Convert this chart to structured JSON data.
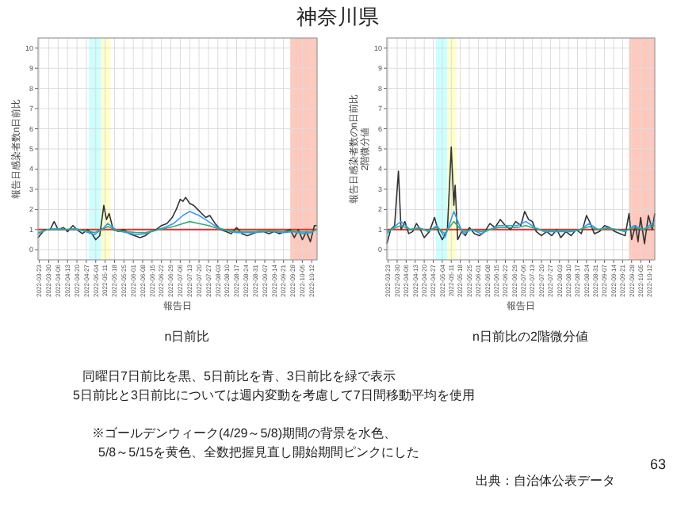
{
  "chart_data": [
    {
      "type": "other",
      "title": "神奈川県",
      "annotations": [
        "同曜日7日前比を黒、5日前比を青、3日前比を緑で表示",
        "5日前比と3日前比については週内変動を考慮して7日間移動平均を使用",
        "※ゴールデンウィーク(4/29～5/8)期間の背景を水色、",
        "5/8～5/15を黄色、全数把握見直し開始期間ピンクにした",
        "出典：自治体公表データ",
        "63"
      ]
    },
    {
      "type": "line",
      "title": "n日前比",
      "xlabel": "報告日",
      "ylabel": "報告日感染者数n日前比",
      "xlim": [
        "2022-03-22",
        "2022-10-16"
      ],
      "ylim": [
        -0.5,
        10.5
      ],
      "yticks": [
        0,
        1,
        2,
        3,
        4,
        5,
        6,
        7,
        8,
        9,
        10
      ],
      "xticks": [
        "2022-03-23",
        "2022-03-30",
        "2022-04-06",
        "2022-04-13",
        "2022-04-20",
        "2022-04-27",
        "2022-05-04",
        "2022-05-11",
        "2022-05-18",
        "2022-05-25",
        "2022-06-01",
        "2022-06-08",
        "2022-06-15",
        "2022-06-22",
        "2022-06-29",
        "2022-07-06",
        "2022-07-13",
        "2022-07-20",
        "2022-07-27",
        "2022-08-03",
        "2022-08-10",
        "2022-08-17",
        "2022-08-24",
        "2022-08-31",
        "2022-09-07",
        "2022-09-14",
        "2022-09-21",
        "2022-09-28",
        "2022-10-05",
        "2022-10-12"
      ],
      "grid": true,
      "bands": [
        {
          "axis": "x",
          "from": "2022-04-29",
          "to": "2022-05-08",
          "color": "#ccffff"
        },
        {
          "axis": "x",
          "from": "2022-05-08",
          "to": "2022-05-15",
          "color": "#ffffcc"
        },
        {
          "axis": "x",
          "from": "2022-09-26",
          "to": "2022-10-16",
          "color": "#ffc8bc"
        }
      ],
      "ref_lines": [
        {
          "axis": "y",
          "value": 1,
          "color": "#e03030"
        }
      ],
      "series": [
        {
          "color": "#333333",
          "x": [
            "2022-03-22",
            "2022-03-27",
            "2022-03-31",
            "2022-04-03",
            "2022-04-06",
            "2022-04-10",
            "2022-04-13",
            "2022-04-17",
            "2022-04-20",
            "2022-04-24",
            "2022-04-28",
            "2022-05-01",
            "2022-05-04",
            "2022-05-07",
            "2022-05-10",
            "2022-05-12",
            "2022-05-14",
            "2022-05-17",
            "2022-05-21",
            "2022-05-25",
            "2022-05-29",
            "2022-06-02",
            "2022-06-06",
            "2022-06-10",
            "2022-06-14",
            "2022-06-18",
            "2022-06-22",
            "2022-06-26",
            "2022-06-30",
            "2022-07-03",
            "2022-07-06",
            "2022-07-08",
            "2022-07-10",
            "2022-07-13",
            "2022-07-16",
            "2022-07-19",
            "2022-07-22",
            "2022-07-25",
            "2022-07-28",
            "2022-08-01",
            "2022-08-05",
            "2022-08-09",
            "2022-08-13",
            "2022-08-17",
            "2022-08-21",
            "2022-08-25",
            "2022-08-29",
            "2022-09-02",
            "2022-09-06",
            "2022-09-10",
            "2022-09-14",
            "2022-09-18",
            "2022-09-22",
            "2022-09-26",
            "2022-09-29",
            "2022-10-02",
            "2022-10-05",
            "2022-10-08",
            "2022-10-11",
            "2022-10-14",
            "2022-10-16"
          ],
          "values": [
            0.6,
            1.0,
            1.0,
            1.4,
            1.0,
            1.1,
            0.9,
            1.2,
            1.0,
            0.8,
            1.0,
            0.8,
            0.5,
            0.7,
            2.2,
            1.5,
            1.8,
            1.0,
            0.9,
            1.0,
            0.8,
            0.7,
            0.6,
            0.7,
            0.9,
            1.0,
            1.2,
            1.3,
            1.6,
            2.0,
            2.5,
            2.4,
            2.6,
            2.3,
            2.2,
            2.0,
            1.8,
            1.6,
            1.7,
            1.3,
            1.0,
            0.9,
            0.8,
            1.1,
            0.8,
            0.7,
            0.8,
            0.9,
            0.9,
            0.8,
            0.9,
            0.8,
            0.9,
            1.0,
            0.6,
            1.0,
            0.5,
            0.9,
            0.4,
            1.2,
            1.2
          ]
        },
        {
          "color": "#3399ff",
          "x": [
            "2022-03-22",
            "2022-03-29",
            "2022-04-05",
            "2022-04-12",
            "2022-04-19",
            "2022-04-26",
            "2022-05-03",
            "2022-05-10",
            "2022-05-13",
            "2022-05-20",
            "2022-05-27",
            "2022-06-03",
            "2022-06-10",
            "2022-06-17",
            "2022-06-24",
            "2022-07-01",
            "2022-07-08",
            "2022-07-13",
            "2022-07-20",
            "2022-07-27",
            "2022-08-03",
            "2022-08-10",
            "2022-08-17",
            "2022-08-24",
            "2022-08-31",
            "2022-09-07",
            "2022-09-14",
            "2022-09-21",
            "2022-09-28",
            "2022-10-05",
            "2022-10-12",
            "2022-10-16"
          ],
          "values": [
            0.8,
            1.0,
            1.05,
            1.0,
            1.05,
            0.9,
            0.75,
            1.1,
            1.3,
            0.95,
            0.85,
            0.75,
            0.8,
            0.95,
            1.1,
            1.3,
            1.7,
            1.9,
            1.7,
            1.4,
            1.1,
            0.95,
            0.85,
            0.85,
            0.85,
            0.9,
            0.9,
            0.85,
            0.9,
            0.8,
            0.85,
            1.05
          ]
        },
        {
          "color": "#33aa77",
          "x": [
            "2022-03-22",
            "2022-03-29",
            "2022-04-05",
            "2022-04-12",
            "2022-04-19",
            "2022-04-26",
            "2022-05-03",
            "2022-05-10",
            "2022-05-13",
            "2022-05-20",
            "2022-05-27",
            "2022-06-03",
            "2022-06-10",
            "2022-06-17",
            "2022-06-24",
            "2022-07-01",
            "2022-07-08",
            "2022-07-13",
            "2022-07-20",
            "2022-07-27",
            "2022-08-03",
            "2022-08-10",
            "2022-08-17",
            "2022-08-24",
            "2022-08-31",
            "2022-09-07",
            "2022-09-14",
            "2022-09-21",
            "2022-09-28",
            "2022-10-05",
            "2022-10-12",
            "2022-10-16"
          ],
          "values": [
            0.85,
            1.0,
            1.0,
            1.0,
            1.0,
            0.95,
            0.85,
            1.05,
            1.15,
            0.95,
            0.9,
            0.85,
            0.85,
            0.95,
            1.05,
            1.15,
            1.3,
            1.4,
            1.3,
            1.2,
            1.05,
            0.95,
            0.9,
            0.9,
            0.9,
            0.92,
            0.92,
            0.9,
            0.92,
            0.88,
            0.9,
            1.0
          ]
        }
      ]
    },
    {
      "type": "line",
      "title": "n日前比の2階微分値",
      "xlabel": "報告日",
      "ylabel": "報告日感染者数のn日前比\n2階微分値",
      "xlim": [
        "2022-03-22",
        "2022-10-16"
      ],
      "ylim": [
        -0.5,
        10.5
      ],
      "yticks": [
        0,
        1,
        2,
        3,
        4,
        5,
        6,
        7,
        8,
        9,
        10
      ],
      "xticks": [
        "2022-03-23",
        "2022-03-30",
        "2022-04-06",
        "2022-04-13",
        "2022-04-20",
        "2022-04-27",
        "2022-05-04",
        "2022-05-11",
        "2022-05-18",
        "2022-05-25",
        "2022-06-01",
        "2022-06-08",
        "2022-06-15",
        "2022-06-22",
        "2022-06-29",
        "2022-07-06",
        "2022-07-13",
        "2022-07-20",
        "2022-07-27",
        "2022-08-03",
        "2022-08-10",
        "2022-08-17",
        "2022-08-24",
        "2022-08-31",
        "2022-09-07",
        "2022-09-14",
        "2022-09-21",
        "2022-09-28",
        "2022-10-05",
        "2022-10-12"
      ],
      "grid": true,
      "bands": [
        {
          "axis": "x",
          "from": "2022-04-29",
          "to": "2022-05-08",
          "color": "#ccffff"
        },
        {
          "axis": "x",
          "from": "2022-05-08",
          "to": "2022-05-15",
          "color": "#ffffcc"
        },
        {
          "axis": "x",
          "from": "2022-09-26",
          "to": "2022-10-16",
          "color": "#ffc8bc"
        }
      ],
      "ref_lines": [
        {
          "axis": "y",
          "value": 1,
          "color": "#e03030"
        }
      ],
      "series": [
        {
          "color": "#333333",
          "x": [
            "2022-03-22",
            "2022-03-25",
            "2022-03-28",
            "2022-03-31",
            "2022-04-02",
            "2022-04-05",
            "2022-04-08",
            "2022-04-11",
            "2022-04-14",
            "2022-04-17",
            "2022-04-20",
            "2022-04-24",
            "2022-04-28",
            "2022-05-01",
            "2022-05-04",
            "2022-05-08",
            "2022-05-11",
            "2022-05-13",
            "2022-05-14",
            "2022-05-16",
            "2022-05-19",
            "2022-05-22",
            "2022-05-25",
            "2022-05-29",
            "2022-06-02",
            "2022-06-06",
            "2022-06-10",
            "2022-06-14",
            "2022-06-18",
            "2022-06-22",
            "2022-06-26",
            "2022-06-30",
            "2022-07-04",
            "2022-07-07",
            "2022-07-10",
            "2022-07-13",
            "2022-07-16",
            "2022-07-20",
            "2022-07-24",
            "2022-07-28",
            "2022-08-01",
            "2022-08-04",
            "2022-08-08",
            "2022-08-12",
            "2022-08-16",
            "2022-08-20",
            "2022-08-24",
            "2022-08-27",
            "2022-08-30",
            "2022-09-03",
            "2022-09-07",
            "2022-09-11",
            "2022-09-15",
            "2022-09-19",
            "2022-09-23",
            "2022-09-26",
            "2022-09-28",
            "2022-10-01",
            "2022-10-03",
            "2022-10-05",
            "2022-10-08",
            "2022-10-11",
            "2022-10-14",
            "2022-10-16"
          ],
          "values": [
            0.3,
            1.0,
            1.2,
            3.9,
            1.0,
            1.4,
            0.8,
            0.9,
            1.3,
            1.0,
            0.6,
            0.9,
            1.6,
            0.9,
            0.5,
            1.0,
            5.1,
            2.2,
            3.2,
            0.5,
            0.9,
            0.7,
            1.1,
            0.8,
            0.7,
            0.9,
            1.3,
            1.1,
            1.5,
            1.2,
            1.0,
            1.4,
            1.2,
            1.9,
            1.5,
            1.4,
            0.9,
            0.7,
            0.9,
            0.7,
            1.0,
            0.6,
            0.9,
            0.7,
            1.0,
            0.8,
            1.7,
            1.3,
            0.8,
            0.9,
            1.2,
            1.1,
            0.9,
            0.8,
            0.7,
            1.8,
            0.5,
            1.2,
            0.4,
            1.6,
            0.3,
            1.7,
            1.0,
            1.8
          ]
        },
        {
          "color": "#3399ff",
          "x": [
            "2022-03-22",
            "2022-03-29",
            "2022-04-02",
            "2022-04-09",
            "2022-04-16",
            "2022-04-23",
            "2022-04-30",
            "2022-05-06",
            "2022-05-13",
            "2022-05-20",
            "2022-05-27",
            "2022-06-03",
            "2022-06-10",
            "2022-06-17",
            "2022-06-24",
            "2022-07-01",
            "2022-07-08",
            "2022-07-15",
            "2022-07-22",
            "2022-07-29",
            "2022-08-05",
            "2022-08-12",
            "2022-08-19",
            "2022-08-26",
            "2022-09-02",
            "2022-09-09",
            "2022-09-16",
            "2022-09-23",
            "2022-09-30",
            "2022-10-07",
            "2022-10-16"
          ],
          "values": [
            0.8,
            1.2,
            1.4,
            1.0,
            1.1,
            0.9,
            1.2,
            0.6,
            1.9,
            0.8,
            1.0,
            0.8,
            1.0,
            1.2,
            1.2,
            1.2,
            1.4,
            1.1,
            0.9,
            0.9,
            0.9,
            0.9,
            1.0,
            1.3,
            1.0,
            1.1,
            1.0,
            0.9,
            1.2,
            1.0,
            1.4
          ]
        },
        {
          "color": "#33aa77",
          "x": [
            "2022-03-22",
            "2022-03-29",
            "2022-04-02",
            "2022-04-09",
            "2022-04-16",
            "2022-04-23",
            "2022-04-30",
            "2022-05-06",
            "2022-05-13",
            "2022-05-20",
            "2022-05-27",
            "2022-06-03",
            "2022-06-10",
            "2022-06-17",
            "2022-06-24",
            "2022-07-01",
            "2022-07-08",
            "2022-07-15",
            "2022-07-22",
            "2022-07-29",
            "2022-08-05",
            "2022-08-12",
            "2022-08-19",
            "2022-08-26",
            "2022-09-02",
            "2022-09-09",
            "2022-09-16",
            "2022-09-23",
            "2022-09-30",
            "2022-10-07",
            "2022-10-16"
          ],
          "values": [
            0.9,
            1.1,
            1.2,
            1.0,
            1.05,
            0.95,
            1.1,
            0.8,
            1.4,
            0.9,
            1.0,
            0.9,
            1.0,
            1.1,
            1.1,
            1.1,
            1.2,
            1.05,
            0.95,
            0.95,
            0.95,
            0.95,
            1.0,
            1.15,
            1.0,
            1.05,
            1.0,
            0.95,
            1.1,
            1.0,
            1.2
          ]
        }
      ]
    }
  ]
}
